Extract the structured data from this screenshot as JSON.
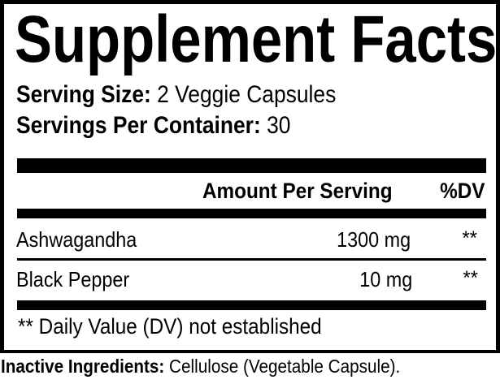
{
  "title": "Supplement Facts",
  "serving_size": {
    "label": "Serving Size:",
    "value": "2 Veggie Capsules"
  },
  "servings_per_container": {
    "label": "Servings Per Container:",
    "value": "30"
  },
  "table": {
    "headers": {
      "amount": "Amount Per Serving",
      "dv": "%DV"
    },
    "rows": [
      {
        "name": "Ashwagandha",
        "amount": "1300 mg",
        "dv": "**"
      },
      {
        "name": "Black Pepper",
        "amount": "10 mg",
        "dv": "**"
      }
    ]
  },
  "footnote": "** Daily Value (DV) not established",
  "inactive": {
    "label": "Inactive Ingredients:",
    "value": "Cellulose (Vegetable Capsule)."
  }
}
